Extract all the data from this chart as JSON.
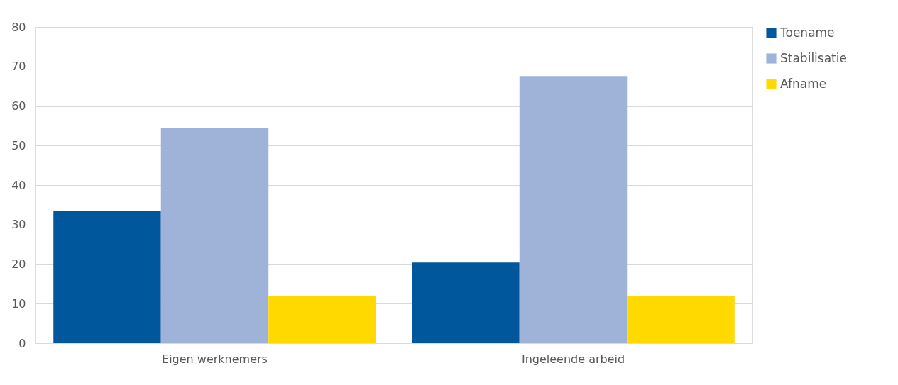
{
  "chart_data": {
    "type": "bar",
    "categories": [
      "Eigen werknemers",
      "Ingeleende arbeid"
    ],
    "series": [
      {
        "name": "Toename",
        "color": "#01579b",
        "values": [
          33.4,
          20.4
        ]
      },
      {
        "name": "Stabilisatie",
        "color": "#9fb3d9",
        "values": [
          54.5,
          67.6
        ]
      },
      {
        "name": "Afname",
        "color": "#ffd900",
        "values": [
          12.0,
          12.0
        ]
      }
    ],
    "ylim": [
      0,
      80
    ],
    "yticks": [
      0,
      10,
      20,
      30,
      40,
      50,
      60,
      70,
      80
    ],
    "grid": "y",
    "legend": "right"
  }
}
